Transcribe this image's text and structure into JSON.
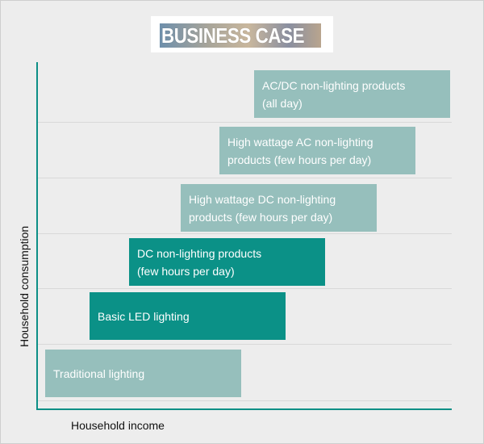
{
  "title": "BUSINESS CASE",
  "axes": {
    "y_label": "Household consumption",
    "x_label": "Household income"
  },
  "colors": {
    "background": "#ededed",
    "axis": "#0c8f86",
    "light_bar": "#96bfbc",
    "dark_bar": "#0b9187"
  },
  "steps": [
    {
      "lines": [
        "Traditional lighting"
      ],
      "tone": "light"
    },
    {
      "lines": [
        "Basic LED lighting"
      ],
      "tone": "dark"
    },
    {
      "lines": [
        "DC non-lighting products",
        "(few hours per day)"
      ],
      "tone": "dark"
    },
    {
      "lines": [
        "High wattage DC non-lighting",
        "products (few hours per day)"
      ],
      "tone": "light"
    },
    {
      "lines": [
        "High wattage AC non-lighting",
        "products (few hours per day)"
      ],
      "tone": "light"
    },
    {
      "lines": [
        "AC/DC non-lighting products",
        "(all day)"
      ],
      "tone": "light"
    }
  ]
}
